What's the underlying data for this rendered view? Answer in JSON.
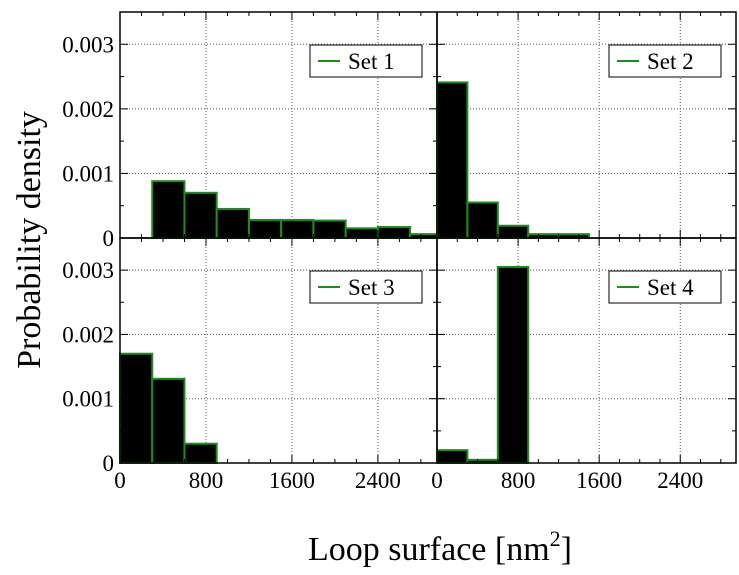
{
  "figure": {
    "ylabel": "Probability density",
    "xlabel": "Loop surface [nm",
    "xlabel_sup": "2",
    "xlabel_close": "]"
  },
  "chart_data": [
    {
      "type": "bar",
      "legend": "Set 1",
      "bin_width": 300,
      "x": [
        0,
        300,
        600,
        900,
        1200,
        1500,
        1800,
        2100,
        2400,
        2700
      ],
      "values": [
        0,
        0.00088,
        0.0007,
        0.00045,
        0.00028,
        0.00028,
        0.00027,
        0.00015,
        0.00017,
        6e-05
      ],
      "xlim": [
        0,
        2950
      ],
      "ylim": [
        0,
        0.0035
      ],
      "yticks": [
        "0",
        "0.001",
        "0.002",
        "0.003"
      ],
      "xticks": [],
      "grid": true,
      "legend_position": "top-right"
    },
    {
      "type": "bar",
      "legend": "Set 2",
      "bin_width": 300,
      "x": [
        0,
        300,
        600,
        900,
        1200
      ],
      "values": [
        0.00241,
        0.00055,
        0.00019,
        6e-05,
        6e-05
      ],
      "xlim": [
        0,
        2950
      ],
      "ylim": [
        0,
        0.0035
      ],
      "yticks": [],
      "xticks": [],
      "grid": true,
      "legend_position": "top-right"
    },
    {
      "type": "bar",
      "legend": "Set 3",
      "bin_width": 300,
      "x": [
        0,
        300,
        600
      ],
      "values": [
        0.0017,
        0.00131,
        0.0003
      ],
      "xlim": [
        0,
        2950
      ],
      "ylim": [
        0,
        0.0035
      ],
      "yticks": [
        "0",
        "0.001",
        "0.002",
        "0.003"
      ],
      "xticks": [
        "0",
        "800",
        "1600",
        "2400"
      ],
      "grid": true,
      "legend_position": "top-right"
    },
    {
      "type": "bar",
      "legend": "Set 4",
      "bin_width": 300,
      "x": [
        0,
        300,
        600
      ],
      "values": [
        0.0002,
        5e-05,
        0.00305
      ],
      "xlim": [
        0,
        2950
      ],
      "ylim": [
        0,
        0.0035
      ],
      "yticks": [],
      "xticks": [
        "0",
        "800",
        "1600",
        "2400"
      ],
      "grid": true,
      "legend_position": "top-right"
    }
  ],
  "colors": {
    "bar_fill": "#000000",
    "bar_edge": "#1a8f1a",
    "legend_line": "#1a8f1a",
    "grid": "#555555"
  }
}
